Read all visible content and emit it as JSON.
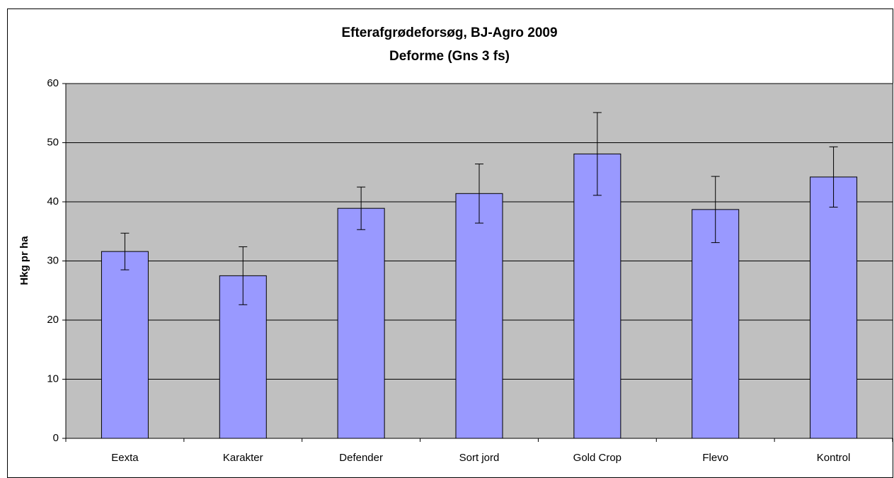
{
  "chart_data": {
    "type": "bar",
    "title": "Efterafgrødeforsøg, BJ-Agro 2009",
    "subtitle": "Deforme (Gns 3 fs)",
    "y_label": "Hkg pr ha",
    "categories": [
      "Eexta",
      "Karakter",
      "Defender",
      "Sort jord",
      "Gold Crop",
      "Flevo",
      "Kontrol"
    ],
    "values": [
      31.6,
      27.5,
      38.9,
      41.4,
      48.1,
      38.7,
      44.2
    ],
    "errors": [
      3.1,
      4.9,
      3.6,
      5.0,
      7.0,
      5.6,
      5.1
    ],
    "color": "#9999ff",
    "ylim": [
      0,
      60
    ],
    "yticks": [
      0,
      10,
      20,
      30,
      40,
      50,
      60
    ],
    "grid": true
  }
}
